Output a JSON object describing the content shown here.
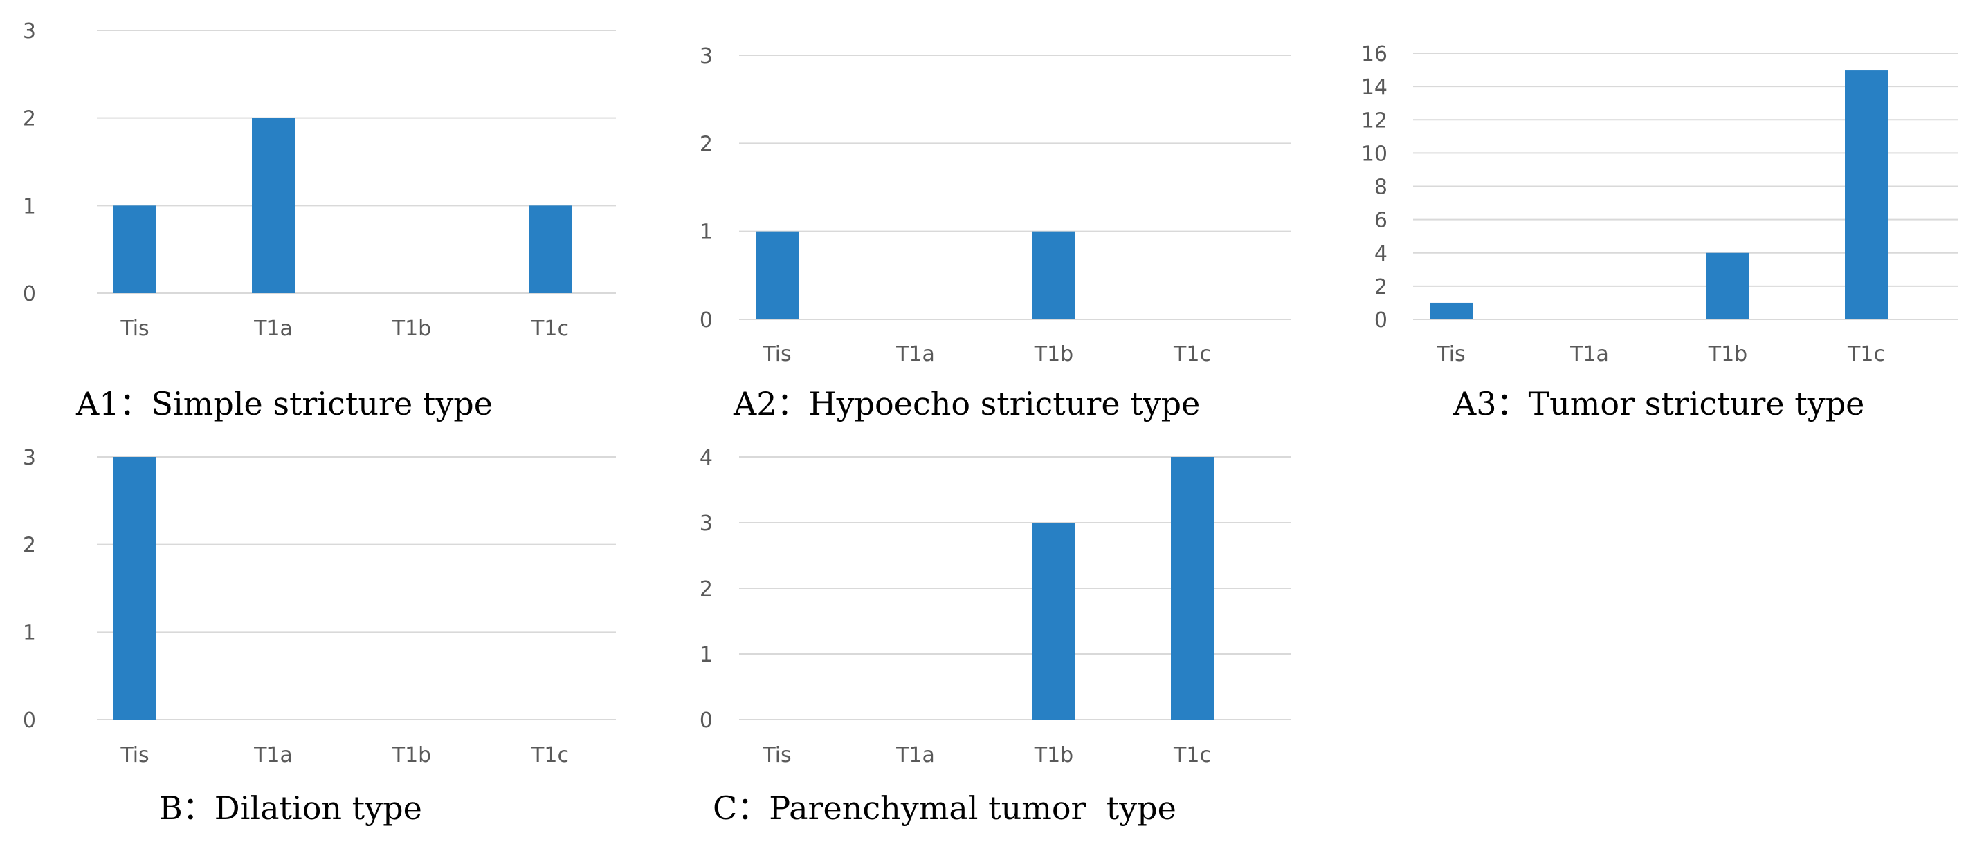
{
  "colors": {
    "bar": "#2880c4",
    "grid": "#d9d9d9",
    "tick_text": "#595959",
    "caption_text": "#000000"
  },
  "chart_data": [
    {
      "type": "bar",
      "title": "A1：Simple stricture type",
      "categories": [
        "Tis",
        "T1a",
        "T1b",
        "T1c"
      ],
      "values": [
        1,
        2,
        0,
        1
      ],
      "yticks": [
        0,
        1,
        2,
        3
      ],
      "ylim": [
        0,
        3
      ],
      "grid": true
    },
    {
      "type": "bar",
      "title": "A2：Hypoecho stricture type",
      "categories": [
        "Tis",
        "T1a",
        "T1b",
        "T1c"
      ],
      "values": [
        1,
        0,
        1,
        0
      ],
      "yticks": [
        0,
        1,
        2,
        3
      ],
      "ylim": [
        0,
        3
      ],
      "grid": true
    },
    {
      "type": "bar",
      "title": "A3：Tumor stricture type",
      "categories": [
        "Tis",
        "T1a",
        "T1b",
        "T1c"
      ],
      "values": [
        1,
        0,
        4,
        15
      ],
      "yticks": [
        0,
        2,
        4,
        6,
        8,
        10,
        12,
        14,
        16
      ],
      "ylim": [
        0,
        16
      ],
      "grid": true
    },
    {
      "type": "bar",
      "title": "B：Dilation type",
      "categories": [
        "Tis",
        "T1a",
        "T1b",
        "T1c"
      ],
      "values": [
        3,
        0,
        0,
        0
      ],
      "yticks": [
        0,
        1,
        2,
        3
      ],
      "ylim": [
        0,
        3
      ],
      "grid": true
    },
    {
      "type": "bar",
      "title": "C：Parenchymal tumor  type",
      "categories": [
        "Tis",
        "T1a",
        "T1b",
        "T1c"
      ],
      "values": [
        0,
        0,
        3,
        4
      ],
      "yticks": [
        0,
        1,
        2,
        3,
        4
      ],
      "ylim": [
        0,
        4
      ],
      "grid": true
    }
  ]
}
